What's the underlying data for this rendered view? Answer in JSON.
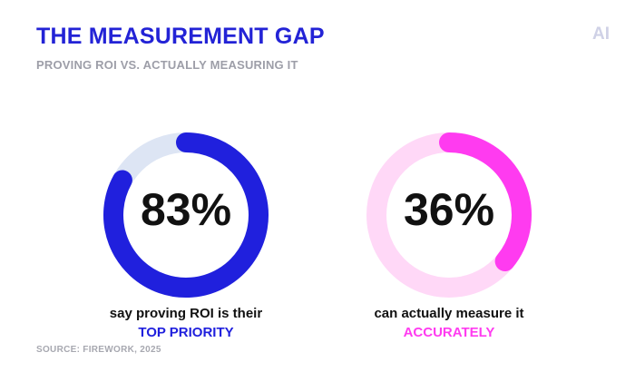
{
  "header": {
    "title": "THE MEASUREMENT GAP",
    "subtitle": "PROVING ROI VS. ACTUALLY MEASURING IT",
    "corner_mark": "AI"
  },
  "chart_data": [
    {
      "type": "pie",
      "value_label": "83%",
      "values": [
        83,
        17
      ],
      "caption_line1": "say proving ROI is their",
      "caption_line2": "TOP PRIORITY",
      "colors": {
        "fill": "#2020dd",
        "track": "#dde5f4",
        "highlight": "#2020dd"
      }
    },
    {
      "type": "pie",
      "value_label": "36%",
      "values": [
        36,
        64
      ],
      "caption_line1": "can actually measure it",
      "caption_line2": "ACCURATELY",
      "colors": {
        "fill": "#ff3bf0",
        "track": "#ffd8f7",
        "highlight": "#ff3bf0"
      }
    }
  ],
  "footer": {
    "source": "SOURCE: FIREWORK, 2025"
  }
}
